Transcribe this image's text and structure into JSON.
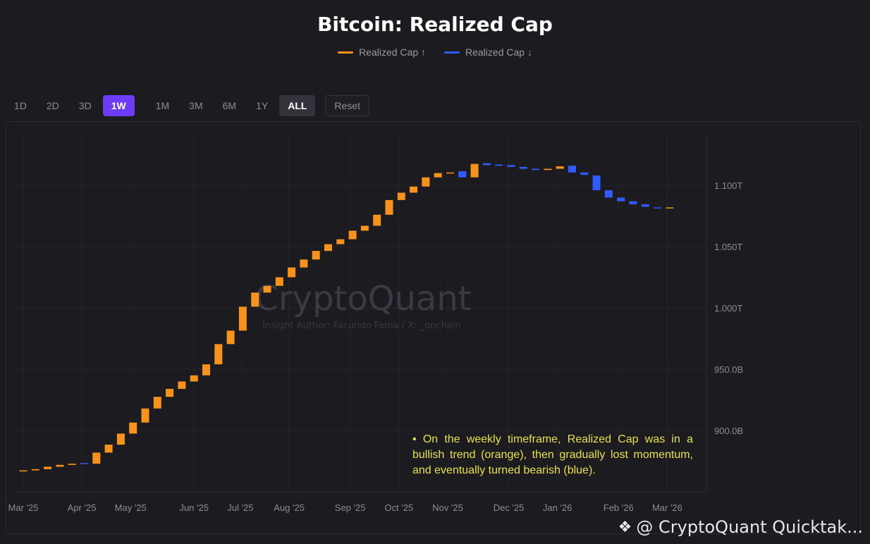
{
  "title": "Bitcoin: Realized Cap",
  "legend": [
    {
      "label": "Realized Cap ↑",
      "color": "#f7931a"
    },
    {
      "label": "Realized Cap ↓",
      "color": "#2f5bff"
    }
  ],
  "toolbar": {
    "timeframes_group1": [
      "1D",
      "2D",
      "3D",
      "1W"
    ],
    "timeframes_group2": [
      "1M",
      "3M",
      "6M",
      "1Y",
      "ALL"
    ],
    "reset_label": "Reset",
    "active_timeframe": "1W",
    "active_range": "ALL"
  },
  "chart_watermark": {
    "brand": "CryptoQuant",
    "author": "Insight Author: Facundo Fama / X: _onchain"
  },
  "annotation": "• On the weekly timeframe, Realized Cap was in a bullish trend (orange), then gradually lost momentum, and eventually turned bearish (blue).",
  "footer_watermark": "@ CryptoQuant Quicktak...",
  "chart_data": {
    "type": "bar",
    "title": "Bitcoin: Realized Cap",
    "y_tick_labels": [
      "900.0B",
      "950.0B",
      "1.000T",
      "1.050T",
      "1.100T"
    ],
    "y_tick_values": [
      900,
      950,
      1000,
      1050,
      1100
    ],
    "ylim": [
      862,
      1140
    ],
    "x_tick_labels": [
      "Mar '25",
      "Apr '25",
      "May '25",
      "Jun '25",
      "Jul '25",
      "Aug '25",
      "Sep '25",
      "Oct '25",
      "Nov '25",
      "Dec '25",
      "Jan '26",
      "Feb '26",
      "Mar '26"
    ],
    "x_tick_week_index": [
      0,
      4.8,
      8.8,
      14,
      17.8,
      21.8,
      26.8,
      30.8,
      34.8,
      39.8,
      43.8,
      48.8,
      52.8
    ],
    "up_color": "#f7931a",
    "down_color": "#2f5bff",
    "grid": true,
    "series": [
      {
        "name": "Realized Cap ↑",
        "direction": "up"
      },
      {
        "name": "Realized Cap ↓",
        "direction": "down"
      }
    ],
    "candles": [
      {
        "open": 867.0,
        "close": 867.5
      },
      {
        "open": 867.5,
        "close": 868.5
      },
      {
        "open": 868.5,
        "close": 870.5
      },
      {
        "open": 870.5,
        "close": 872.0
      },
      {
        "open": 872.0,
        "close": 873.0
      },
      {
        "open": 873.5,
        "close": 873.0
      },
      {
        "open": 873.0,
        "close": 882.0
      },
      {
        "open": 882.0,
        "close": 888.5
      },
      {
        "open": 888.5,
        "close": 897.5
      },
      {
        "open": 897.5,
        "close": 906.5
      },
      {
        "open": 906.5,
        "close": 918.0
      },
      {
        "open": 918.0,
        "close": 927.5
      },
      {
        "open": 927.5,
        "close": 934.0
      },
      {
        "open": 934.0,
        "close": 940.0
      },
      {
        "open": 940.0,
        "close": 945.0
      },
      {
        "open": 945.0,
        "close": 954.0
      },
      {
        "open": 954.0,
        "close": 970.5
      },
      {
        "open": 970.5,
        "close": 981.5
      },
      {
        "open": 981.5,
        "close": 1001.0
      },
      {
        "open": 1001.0,
        "close": 1012.5
      },
      {
        "open": 1012.5,
        "close": 1018.0
      },
      {
        "open": 1018.0,
        "close": 1025.0
      },
      {
        "open": 1025.0,
        "close": 1033.0
      },
      {
        "open": 1033.0,
        "close": 1039.5
      },
      {
        "open": 1039.5,
        "close": 1046.5
      },
      {
        "open": 1046.5,
        "close": 1052.0
      },
      {
        "open": 1052.0,
        "close": 1056.0
      },
      {
        "open": 1056.0,
        "close": 1063.0
      },
      {
        "open": 1063.0,
        "close": 1067.0
      },
      {
        "open": 1067.0,
        "close": 1076.0
      },
      {
        "open": 1076.0,
        "close": 1088.0
      },
      {
        "open": 1088.0,
        "close": 1094.0
      },
      {
        "open": 1094.0,
        "close": 1099.0
      },
      {
        "open": 1099.0,
        "close": 1106.5
      },
      {
        "open": 1106.5,
        "close": 1110.0
      },
      {
        "open": 1110.0,
        "close": 1110.5
      },
      {
        "open": 1111.5,
        "close": 1106.5
      },
      {
        "open": 1106.5,
        "close": 1117.5
      },
      {
        "open": 1118.0,
        "close": 1116.5
      },
      {
        "open": 1117.0,
        "close": 1116.0
      },
      {
        "open": 1116.5,
        "close": 1115.0
      },
      {
        "open": 1115.0,
        "close": 1113.5
      },
      {
        "open": 1113.5,
        "close": 1112.5
      },
      {
        "open": 1112.5,
        "close": 1113.5
      },
      {
        "open": 1113.5,
        "close": 1115.5
      },
      {
        "open": 1116.0,
        "close": 1110.5
      },
      {
        "open": 1110.5,
        "close": 1108.5
      },
      {
        "open": 1108.0,
        "close": 1096.0
      },
      {
        "open": 1096.0,
        "close": 1090.0
      },
      {
        "open": 1090.0,
        "close": 1087.0
      },
      {
        "open": 1087.0,
        "close": 1084.5
      },
      {
        "open": 1084.5,
        "close": 1082.5
      },
      {
        "open": 1082.0,
        "close": 1081.5
      },
      {
        "open": 1081.5,
        "close": 1082.0
      }
    ]
  }
}
